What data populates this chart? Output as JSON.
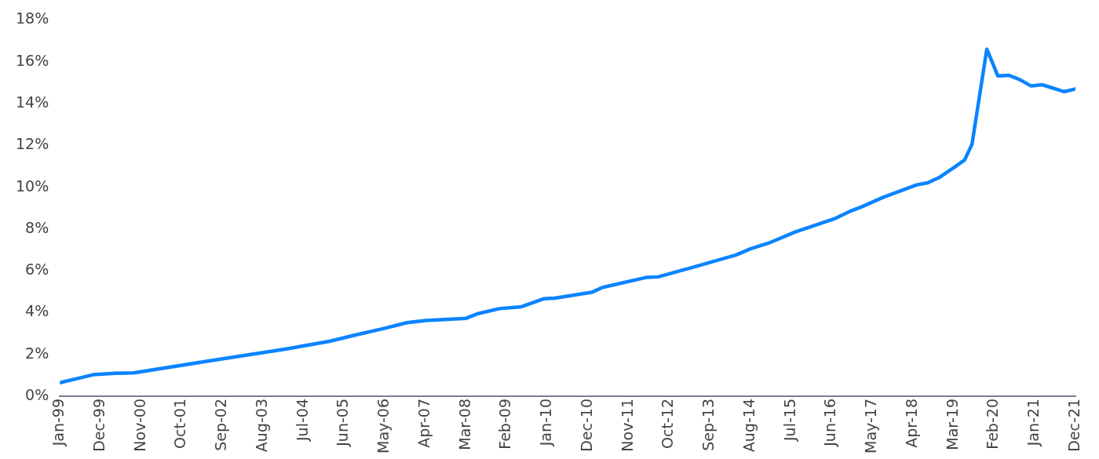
{
  "chart_data": {
    "type": "line",
    "x": [
      "1999-01",
      "1999-10",
      "2000-04",
      "2000-09",
      "2002-04",
      "2004-02",
      "2005-02",
      "2005-09",
      "2006-05",
      "2006-11",
      "2007-04",
      "2008-03",
      "2008-06",
      "2008-12",
      "2009-06",
      "2009-12",
      "2010-03",
      "2011-01",
      "2011-04",
      "2012-04",
      "2012-07",
      "2013-05",
      "2014-04",
      "2014-08",
      "2015-01",
      "2015-08",
      "2016-07",
      "2016-11",
      "2017-02",
      "2017-08",
      "2018-05",
      "2018-08",
      "2018-11",
      "2019-03",
      "2019-06",
      "2019-08",
      "2019-12",
      "2020-03",
      "2020-06",
      "2020-09",
      "2020-12",
      "2021-03",
      "2021-09",
      "2021-12"
    ],
    "series": [
      {
        "color": "#0a84ff",
        "values": [
          0.65,
          1.03,
          1.1,
          1.12,
          1.65,
          2.25,
          2.63,
          2.93,
          3.25,
          3.52,
          3.62,
          3.73,
          3.94,
          4.19,
          4.28,
          4.66,
          4.69,
          4.97,
          5.21,
          5.69,
          5.71,
          6.2,
          6.75,
          7.05,
          7.33,
          7.85,
          8.51,
          8.85,
          9.05,
          9.52,
          10.11,
          10.21,
          10.45,
          10.93,
          11.3,
          12.06,
          16.6,
          15.32,
          15.35,
          15.14,
          14.84,
          14.9,
          14.57,
          14.7
        ]
      }
    ],
    "xlim": [
      "1999-01",
      "2021-12"
    ],
    "xticks": [
      {
        "value": "1999-01",
        "label": "Jan-99"
      },
      {
        "value": "1999-12",
        "label": "Dec-99"
      },
      {
        "value": "2000-11",
        "label": "Nov-00"
      },
      {
        "value": "2001-10",
        "label": "Oct-01"
      },
      {
        "value": "2002-09",
        "label": "Sep-02"
      },
      {
        "value": "2003-08",
        "label": "Aug-03"
      },
      {
        "value": "2004-07",
        "label": "Jul-04"
      },
      {
        "value": "2005-06",
        "label": "Jun-05"
      },
      {
        "value": "2006-05",
        "label": "May-06"
      },
      {
        "value": "2007-04",
        "label": "Apr-07"
      },
      {
        "value": "2008-03",
        "label": "Mar-08"
      },
      {
        "value": "2009-02",
        "label": "Feb-09"
      },
      {
        "value": "2010-01",
        "label": "Jan-10"
      },
      {
        "value": "2010-12",
        "label": "Dec-10"
      },
      {
        "value": "2011-11",
        "label": "Nov-11"
      },
      {
        "value": "2012-10",
        "label": "Oct-12"
      },
      {
        "value": "2013-09",
        "label": "Sep-13"
      },
      {
        "value": "2014-08",
        "label": "Aug-14"
      },
      {
        "value": "2015-07",
        "label": "Jul-15"
      },
      {
        "value": "2016-06",
        "label": "Jun-16"
      },
      {
        "value": "2017-05",
        "label": "May-17"
      },
      {
        "value": "2018-04",
        "label": "Apr-18"
      },
      {
        "value": "2019-03",
        "label": "Mar-19"
      },
      {
        "value": "2020-02",
        "label": "Feb-20"
      },
      {
        "value": "2021-01",
        "label": "Jan-21"
      },
      {
        "value": "2021-12",
        "label": "Dec-21"
      }
    ],
    "ylim": [
      0,
      18
    ],
    "yticks": [
      {
        "value": 0,
        "label": "0%"
      },
      {
        "value": 2,
        "label": "2%"
      },
      {
        "value": 4,
        "label": "4%"
      },
      {
        "value": 6,
        "label": "6%"
      },
      {
        "value": 8,
        "label": "8%"
      },
      {
        "value": 10,
        "label": "10%"
      },
      {
        "value": 12,
        "label": "12%"
      },
      {
        "value": 14,
        "label": "14%"
      },
      {
        "value": 16,
        "label": "16%"
      },
      {
        "value": 18,
        "label": "18%"
      }
    ],
    "grid": false,
    "legend": false,
    "marker": "none",
    "line_style": "solid"
  }
}
